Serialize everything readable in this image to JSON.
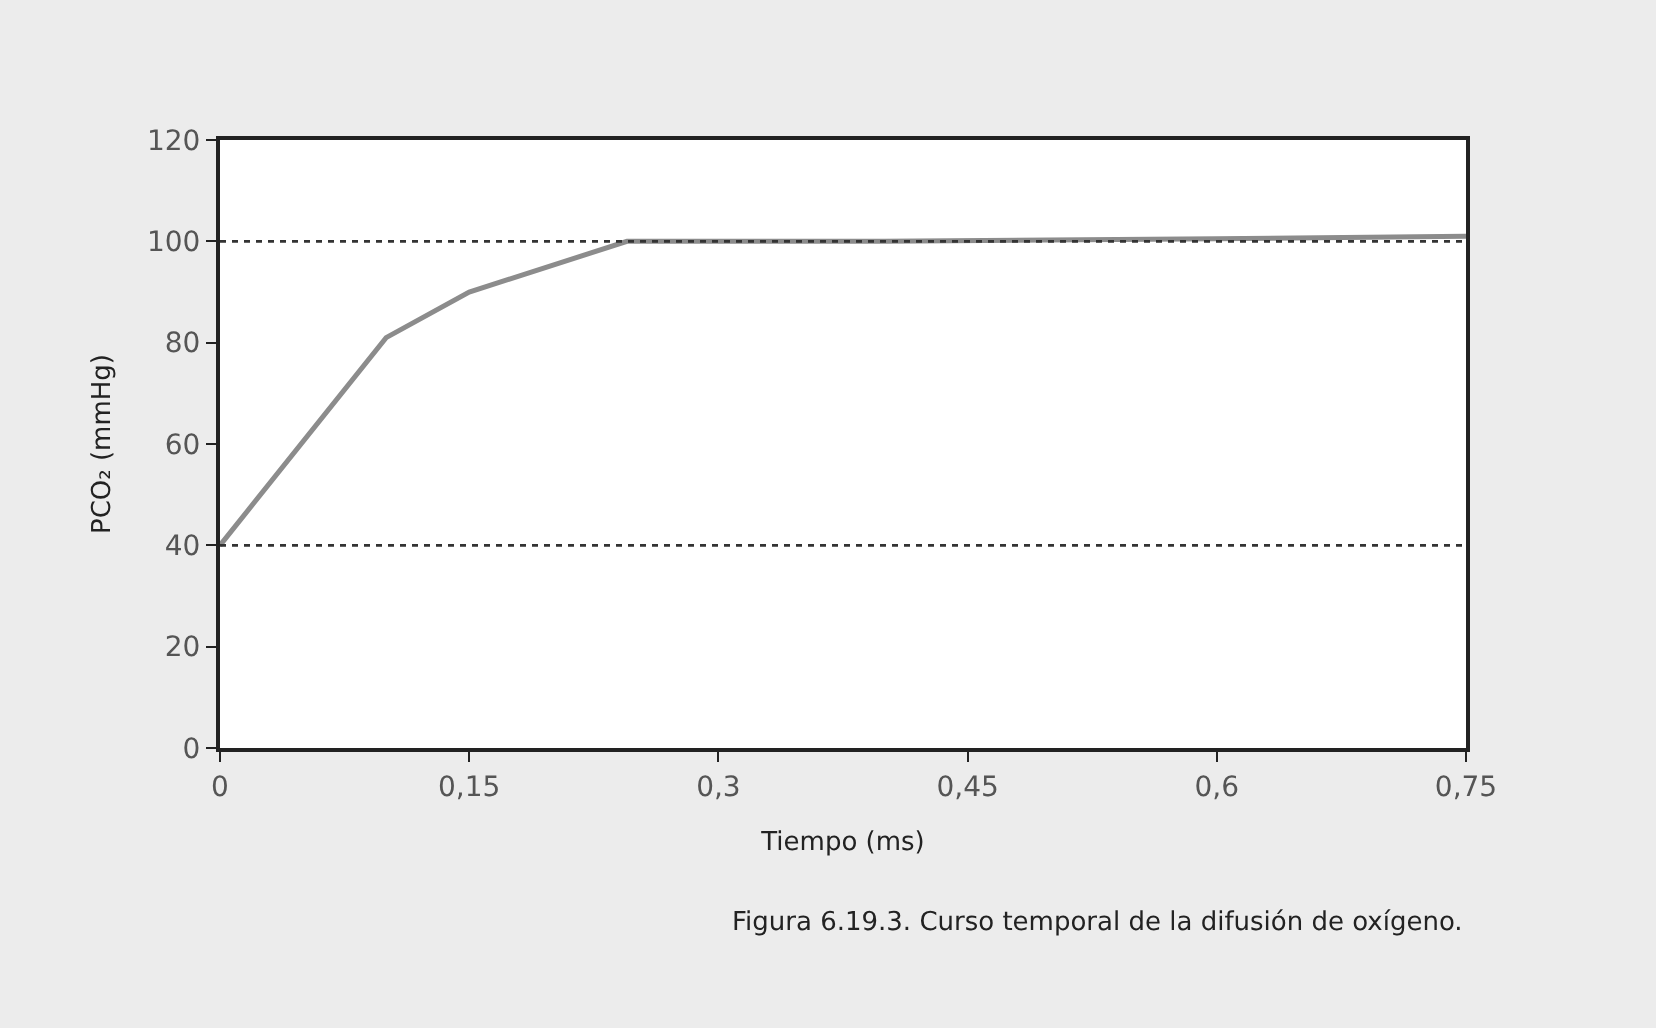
{
  "chart_data": {
    "type": "line",
    "xlabel": "Tiempo (ms)",
    "ylabel": "PCO₂ (mmHg)",
    "x": [
      0,
      0.1,
      0.15,
      0.245,
      0.4,
      0.6,
      0.75
    ],
    "series": [
      {
        "color": "#8c8c8c",
        "values": [
          40,
          81,
          90,
          100,
          100,
          100.5,
          101
        ]
      }
    ],
    "xlim": [
      0,
      0.75
    ],
    "xticks": [
      {
        "value": 0,
        "label": "0"
      },
      {
        "value": 0.15,
        "label": "0,15"
      },
      {
        "value": 0.3,
        "label": "0,3"
      },
      {
        "value": 0.45,
        "label": "0,45"
      },
      {
        "value": 0.6,
        "label": "0,6"
      },
      {
        "value": 0.75,
        "label": "0,75"
      }
    ],
    "ylim": [
      0,
      120
    ],
    "yticks": [
      0,
      20,
      40,
      60,
      80,
      100,
      120
    ],
    "ref_lines": [
      {
        "axis": "y",
        "value": 100,
        "label": null,
        "color": "#333333",
        "line_style": "dotted"
      },
      {
        "axis": "y",
        "value": 40,
        "label": null,
        "color": "#333333",
        "line_style": "dotted"
      }
    ],
    "annotations": [
      "Figura 6.19.3. Curso temporal de la difusión de oxígeno."
    ],
    "marker": "none",
    "line_style": "solid"
  }
}
